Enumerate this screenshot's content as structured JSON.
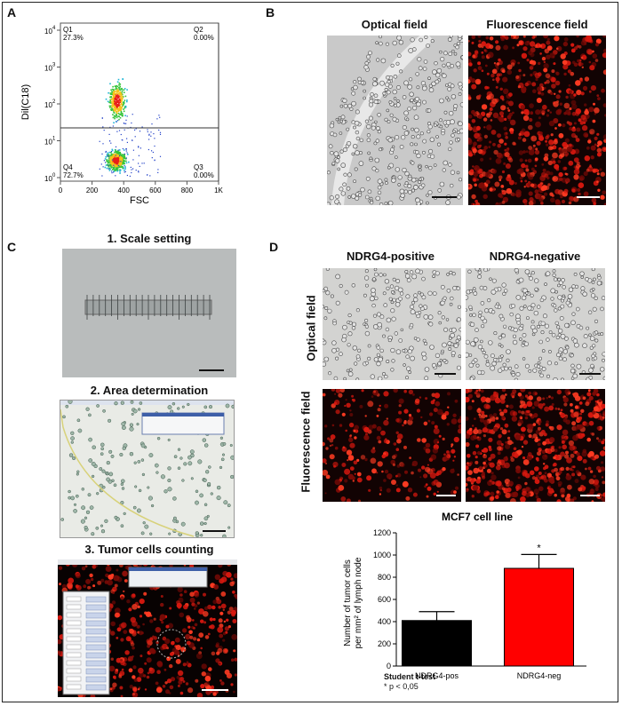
{
  "panels": {
    "A": {
      "label": "A",
      "quadrants": {
        "q1": "Q1",
        "q1_pct": "27.3%",
        "q2": "Q2",
        "q2_pct": "0.00%",
        "q3": "Q3",
        "q3_pct": "0.00%",
        "q4": "Q4",
        "q4_pct": "72.7%"
      },
      "x_axis_label": "FSC",
      "y_axis_label": "Dil(C18)",
      "x_ticks": [
        "0",
        "200",
        "400",
        "600",
        "800",
        "1K"
      ],
      "y_ticks": [
        {
          "base": "10",
          "exp": "4"
        },
        {
          "base": "10",
          "exp": "3"
        },
        {
          "base": "10",
          "exp": "2"
        },
        {
          "base": "10",
          "exp": "1"
        },
        {
          "base": "10",
          "exp": "0"
        }
      ]
    },
    "B": {
      "label": "B",
      "optical_caption": "Optical field",
      "fluorescence_caption": "Fluorescence field"
    },
    "C": {
      "label": "C",
      "step1": "1. Scale setting",
      "step2": "2. Area determination",
      "step3": "3. Tumor cells counting"
    },
    "D": {
      "label": "D",
      "col_positive": "NDRG4-positive",
      "col_negative": "NDRG4-negative",
      "row_optical": "Optical field",
      "row_fluorescence": "Fluorescence field",
      "stats_line1": "Student t-test",
      "stats_line2": "* p < 0,05"
    }
  },
  "colors": {
    "bar_pos": "#000000",
    "bar_neg": "#ff0000",
    "fluor_red": "#ff2a1a"
  },
  "chart_data": {
    "type": "bar",
    "title": "MCF7 cell line",
    "ylabel_line1": "Number of tumor cells",
    "ylabel_line2": "per mm² of lymph node",
    "categories": [
      "NDRG4-pos",
      "NDRG4-neg"
    ],
    "values": [
      410,
      880
    ],
    "errors": [
      80,
      125
    ],
    "significance": [
      "",
      "*"
    ],
    "ylim": [
      0,
      1200
    ],
    "yticks": [
      "0",
      "200",
      "400",
      "600",
      "800",
      "1000",
      "1200"
    ],
    "grid": false
  }
}
